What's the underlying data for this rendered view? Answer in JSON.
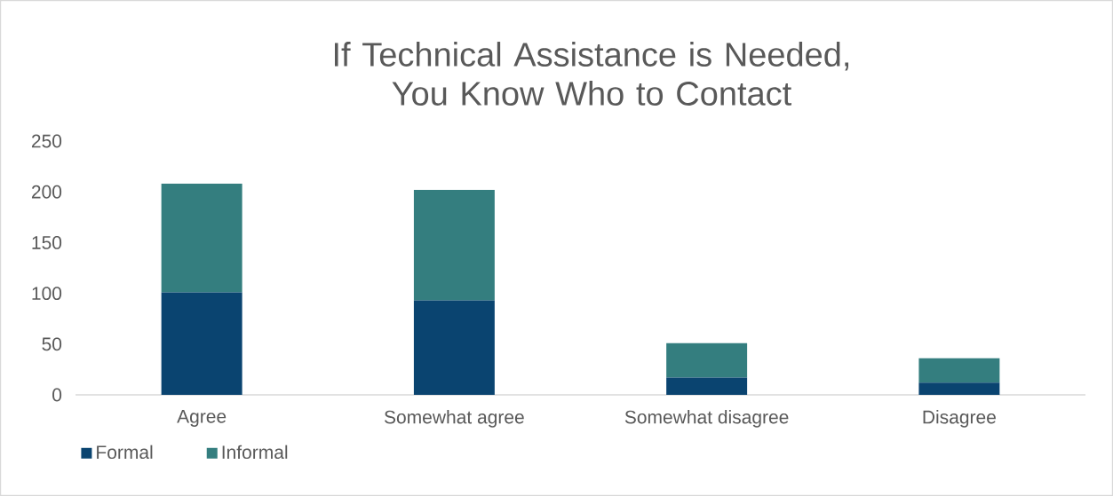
{
  "chart_data": {
    "type": "bar",
    "title": "If Technical Assistance is Needed, You Know Who to Contact",
    "categories": [
      "Agree",
      "Somewhat agree",
      "Somewhat disagree",
      "Disagree"
    ],
    "series": [
      {
        "name": "Formal",
        "color": "#0a4470",
        "values": [
          101,
          93,
          17,
          12
        ]
      },
      {
        "name": "Informal",
        "color": "#347e7f",
        "values": [
          107,
          109,
          34,
          24
        ]
      }
    ],
    "stacked": true,
    "ylim": [
      0,
      250
    ],
    "yticks": [
      0,
      50,
      100,
      150,
      200,
      250
    ],
    "legend": "bottom left"
  }
}
